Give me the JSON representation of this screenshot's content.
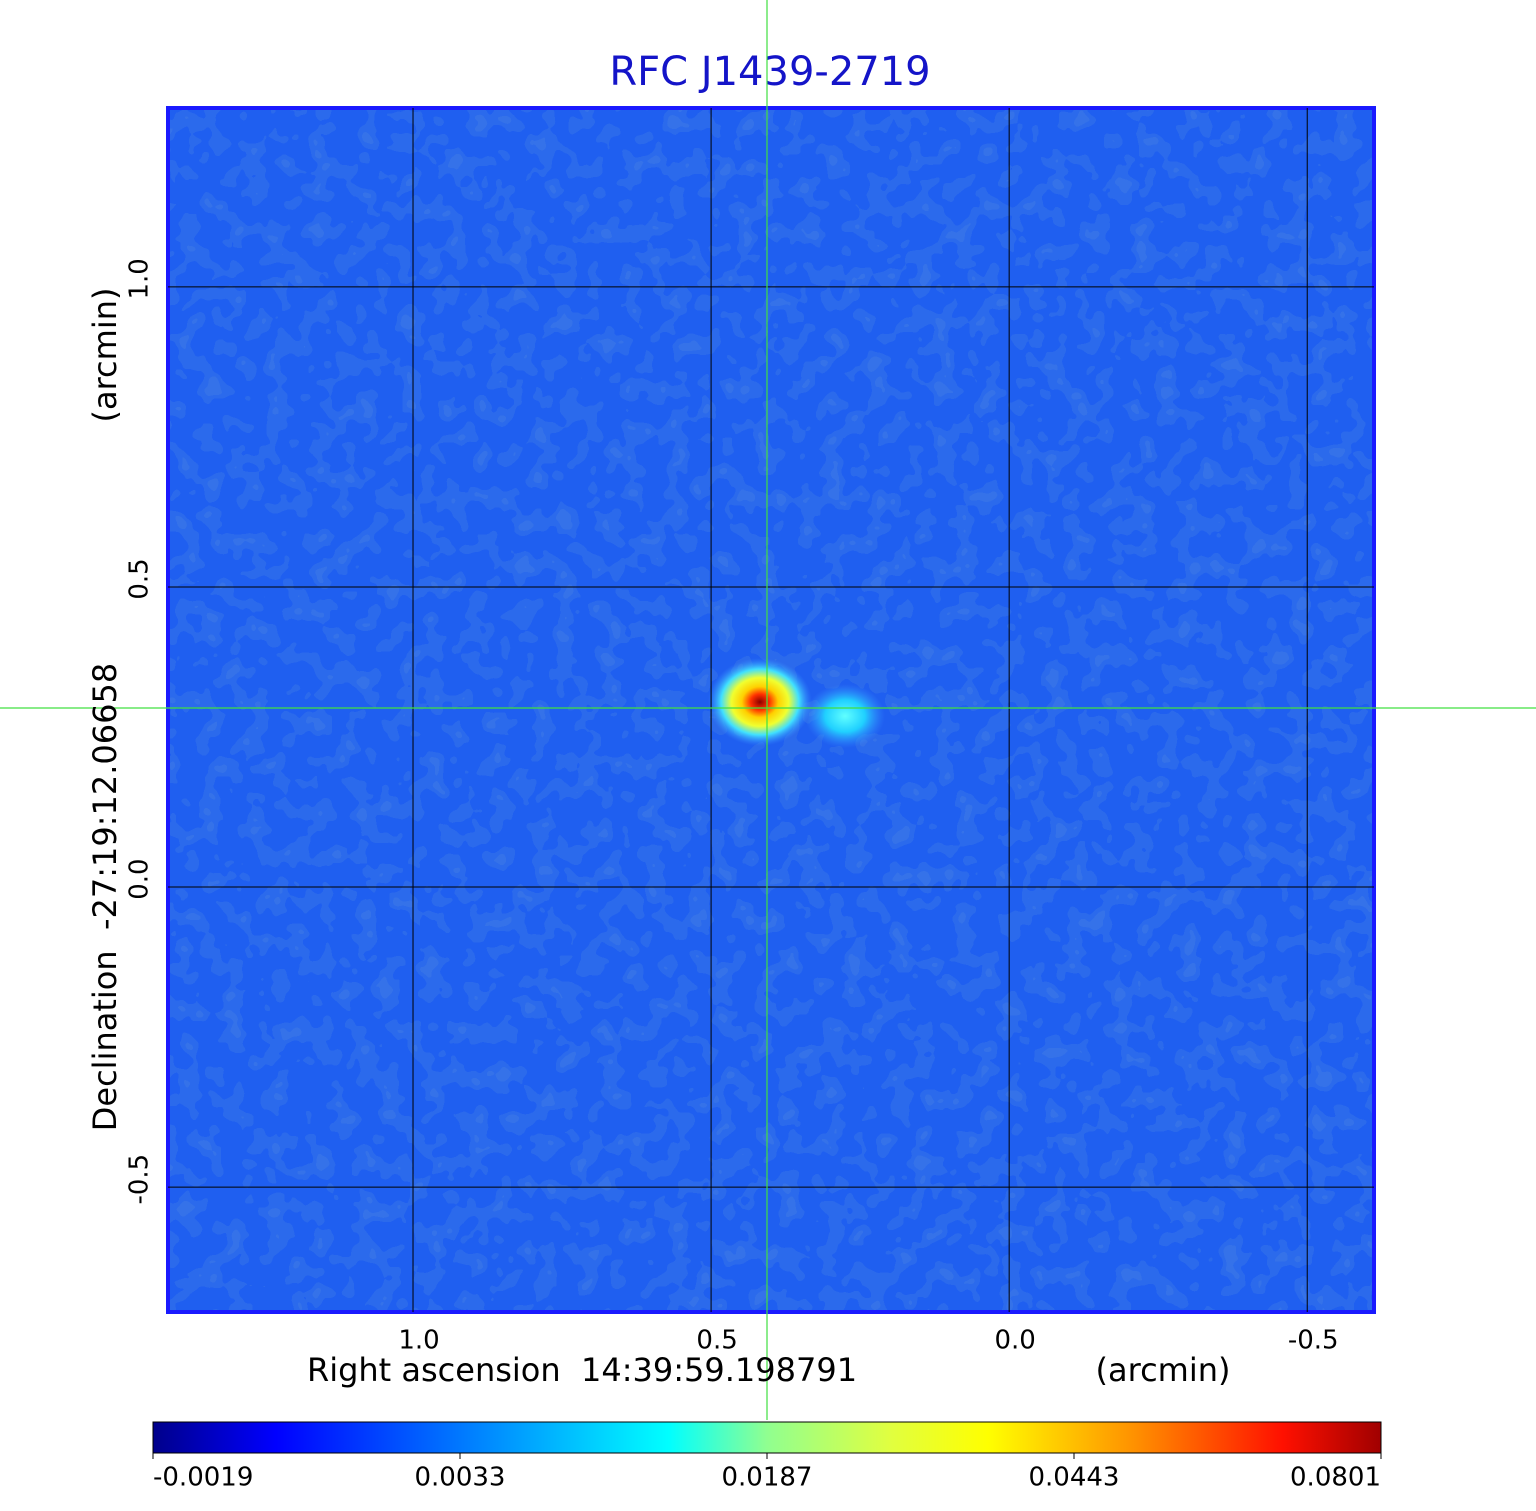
{
  "chart_data": {
    "type": "image",
    "title": "RFC J1439-2719",
    "x_label": "Right ascension  14:39:59.198791",
    "x_unit": "(arcmin)",
    "y_label": "Declination  -27:19:12.06658",
    "y_unit": "(arcmin)",
    "xlim": [
      1.411,
      -0.612
    ],
    "ylim": [
      -0.708,
      1.298
    ],
    "xticks": [
      {
        "value": 1,
        "label": "1.0"
      },
      0.5,
      {
        "value": 0,
        "label": "0.0"
      },
      -0.5
    ],
    "yticks": [
      -0.5,
      {
        "value": 0,
        "label": "0.0"
      },
      0.5,
      {
        "value": 1,
        "label": "1.0"
      }
    ],
    "grid": true,
    "colormap": "jet",
    "colorbar_ticks": [
      -0.0019,
      0.0033,
      0.0187,
      0.0443,
      0.0801
    ]
  }
}
